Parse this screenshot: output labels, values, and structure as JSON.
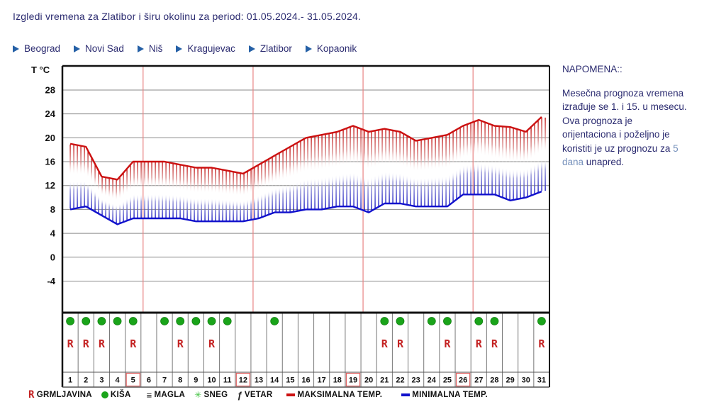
{
  "header": {
    "title": "Izgledi vremena za Zlatibor i širu okolinu za period: 01.05.2024.- 31.05.2024."
  },
  "nav": {
    "items": [
      {
        "label": "Beograd"
      },
      {
        "label": "Novi Sad"
      },
      {
        "label": "Niš"
      },
      {
        "label": "Kragujevac"
      },
      {
        "label": "Zlatibor"
      },
      {
        "label": "Kopaonik"
      }
    ]
  },
  "note": {
    "title": "NAPOMENA::",
    "text_before": "Mesečna prognoza vremena izrađuje se 1. i 15. u mesecu. Ova prognoza je orijentaciona i poželjno je koristiti je uz prognozu za ",
    "link_text": "5 dana",
    "text_after": " unapred."
  },
  "icons": {
    "thunder": "R",
    "fog": "≡",
    "snow": "✳",
    "wind": "ƒ"
  },
  "legend": {
    "items": [
      {
        "symbol": "thunder",
        "label": "GRMLJAVINA"
      },
      {
        "symbol": "rain",
        "label": "KIŠA"
      },
      {
        "symbol": "fog",
        "label": "MAGLA"
      },
      {
        "symbol": "snow",
        "label": "SNEG"
      },
      {
        "symbol": "wind",
        "label": "VETAR"
      },
      {
        "symbol": "max-temp",
        "label": "MAKSIMALNA TEMP."
      },
      {
        "symbol": "min-temp",
        "label": "MINIMALNA TEMP."
      }
    ]
  },
  "chart_data": {
    "type": "line",
    "ylabel": "T °C",
    "yticks": [
      28,
      24,
      20,
      16,
      12,
      8,
      4,
      0,
      -4
    ],
    "ylim": [
      -9,
      32
    ],
    "x_days": [
      1,
      2,
      3,
      4,
      5,
      6,
      7,
      8,
      9,
      10,
      11,
      12,
      13,
      14,
      15,
      16,
      17,
      18,
      19,
      20,
      21,
      22,
      23,
      24,
      25,
      26,
      27,
      28,
      29,
      30,
      31
    ],
    "series": [
      {
        "name": "MAKSIMALNA TEMP.",
        "color": "#cc1111",
        "values": [
          19,
          18.5,
          13.5,
          13,
          16,
          16,
          16,
          15.5,
          15,
          15,
          14.5,
          14,
          15.5,
          17,
          18.5,
          20,
          20.5,
          21,
          22,
          21,
          21.5,
          21,
          19.5,
          20,
          20.5,
          22,
          23,
          22,
          21.8,
          21,
          23.5
        ]
      },
      {
        "name": "MINIMALNA TEMP.",
        "color": "#1111cc",
        "values": [
          8,
          8.5,
          7,
          5.5,
          6.5,
          6.5,
          6.5,
          6.5,
          6,
          6,
          6,
          6,
          6.5,
          7.5,
          7.5,
          8,
          8,
          8.5,
          8.5,
          7.5,
          9,
          9,
          8.5,
          8.5,
          8.5,
          10.5,
          10.5,
          10.5,
          9.5,
          10,
          11
        ]
      }
    ],
    "rain_days": [
      1,
      2,
      3,
      4,
      5,
      7,
      8,
      9,
      10,
      11,
      14,
      21,
      22,
      24,
      25,
      27,
      28,
      31
    ],
    "thunder_days": [
      1,
      2,
      3,
      5,
      8,
      10,
      21,
      22,
      25,
      27,
      28,
      31
    ],
    "sunday_boxed_days": [
      5,
      12,
      19,
      26
    ],
    "week_separator_after_days": [
      5,
      12,
      19,
      26
    ],
    "grid": true,
    "colors": {
      "max": "#cc1111",
      "min": "#1111cc",
      "week_line": "#e88484",
      "grid": "#8a8a8a",
      "rain": "#1aa41a",
      "thunder": "#c42222",
      "sunday_box": "#e06060"
    }
  }
}
